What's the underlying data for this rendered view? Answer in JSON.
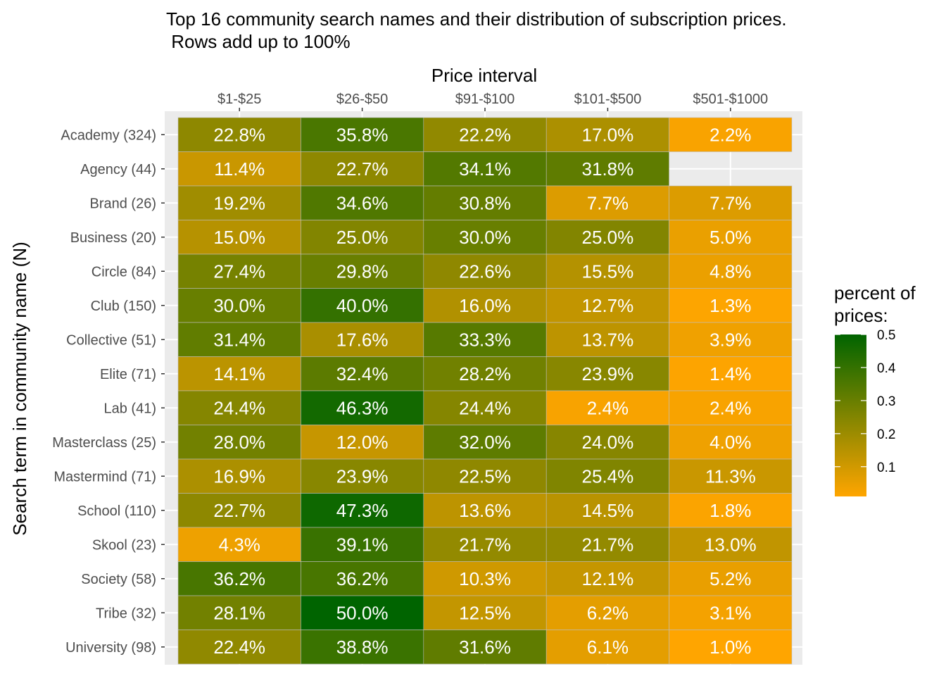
{
  "chart_data": {
    "type": "heatmap",
    "title_lines": [
      "Top 16 community search names and their distribution of subscription prices.",
      " Rows add up to 100%"
    ],
    "xlabel": "Price interval",
    "ylabel": "Search term in community name (N)",
    "x_position": "top",
    "grid": true,
    "columns": [
      "$1-$25",
      "$26-$50",
      "$91-$100",
      "$101-$500",
      "$501-$1000"
    ],
    "rows": [
      "Academy (324)",
      "Agency (44)",
      "Brand (26)",
      "Business (20)",
      "Circle (84)",
      "Club (150)",
      "Collective (51)",
      "Elite (71)",
      "Lab (41)",
      "Masterclass (25)",
      "Mastermind (71)",
      "School (110)",
      "Skool (23)",
      "Society (58)",
      "Tribe (32)",
      "University (98)"
    ],
    "values": [
      [
        22.8,
        35.8,
        22.2,
        17.0,
        2.2
      ],
      [
        11.4,
        22.7,
        34.1,
        31.8,
        null
      ],
      [
        19.2,
        34.6,
        30.8,
        7.7,
        7.7
      ],
      [
        15.0,
        25.0,
        30.0,
        25.0,
        5.0
      ],
      [
        27.4,
        29.8,
        22.6,
        15.5,
        4.8
      ],
      [
        30.0,
        40.0,
        16.0,
        12.7,
        1.3
      ],
      [
        31.4,
        17.6,
        33.3,
        13.7,
        3.9
      ],
      [
        14.1,
        32.4,
        28.2,
        23.9,
        1.4
      ],
      [
        24.4,
        46.3,
        24.4,
        2.4,
        2.4
      ],
      [
        28.0,
        12.0,
        32.0,
        24.0,
        4.0
      ],
      [
        16.9,
        23.9,
        22.5,
        25.4,
        11.3
      ],
      [
        22.7,
        47.3,
        13.6,
        14.5,
        1.8
      ],
      [
        4.3,
        39.1,
        21.7,
        21.7,
        13.0
      ],
      [
        36.2,
        36.2,
        10.3,
        12.1,
        5.2
      ],
      [
        28.1,
        50.0,
        12.5,
        6.2,
        3.1
      ],
      [
        22.4,
        38.8,
        31.6,
        6.1,
        1.0
      ]
    ],
    "value_suffix": "%",
    "legend": {
      "title_lines": [
        "percent of",
        "prices:"
      ],
      "ticks": [
        "0.1",
        "0.2",
        "0.3",
        "0.4",
        "0.5"
      ],
      "tick_values": [
        0.1,
        0.2,
        0.3,
        0.4,
        0.5
      ],
      "range": [
        0.01,
        0.5
      ],
      "low_color": "#ffa500",
      "high_color": "#006400",
      "placement": "right"
    },
    "panel_background": "#ebebeb",
    "grid_color": "#ffffff"
  }
}
